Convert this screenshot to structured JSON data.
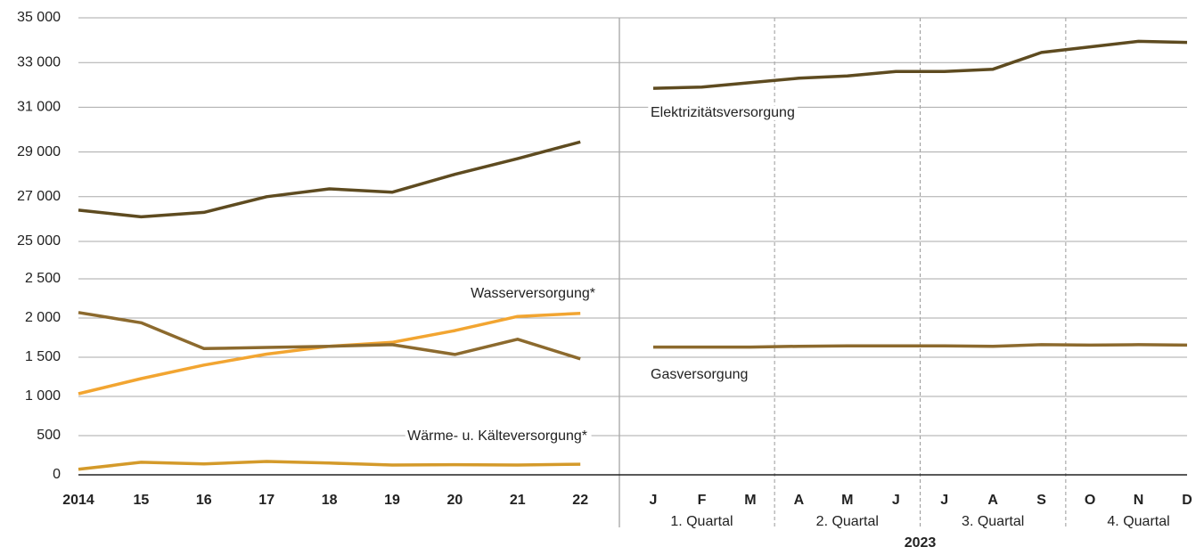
{
  "chart_data": [
    {
      "type": "line",
      "ylim": [
        25000,
        35000
      ],
      "yticks": [
        {
          "value": 25000,
          "label": "25 000"
        },
        {
          "value": 27000,
          "label": "27 000"
        },
        {
          "value": 29000,
          "label": "29 000"
        },
        {
          "value": 31000,
          "label": "31 000"
        },
        {
          "value": 33000,
          "label": "33 000"
        },
        {
          "value": 35000,
          "label": "35 000"
        }
      ],
      "series": [
        {
          "name": "Elektrizitätsversorgung",
          "color": "#5e4b20",
          "values": [
            26400,
            26100,
            26300,
            27000,
            27350,
            27200,
            28000,
            28700,
            29450,
            31850,
            31900,
            32100,
            32300,
            32400,
            32600,
            32600,
            32700,
            33450,
            33700,
            33950,
            33900
          ]
        }
      ]
    },
    {
      "type": "line",
      "ylim": [
        0,
        2500
      ],
      "yticks": [
        0,
        500,
        {
          "value": 1000,
          "label": "1 000"
        },
        {
          "value": 1500,
          "label": "1 500"
        },
        {
          "value": 2000,
          "label": "2 000"
        },
        {
          "value": 2500,
          "label": "2 500"
        }
      ],
      "categories": [
        "2014",
        "15",
        "16",
        "17",
        "18",
        "19",
        "20",
        "21",
        "22",
        "J",
        "F",
        "M",
        "A",
        "M",
        "J",
        "J",
        "A",
        "S",
        "O",
        "N",
        "D"
      ],
      "period_label": "2023",
      "quarters": [
        "1. Quartal",
        "2. Quartal",
        "3. Quartal",
        "4. Quartal"
      ],
      "series": [
        {
          "name": "Wasserversorgung*",
          "color": "#f2a531",
          "values": [
            1034,
            1227,
            1400,
            1540,
            1640,
            1690,
            1840,
            2020,
            2060,
            null,
            null,
            null,
            null,
            null,
            null,
            null,
            null,
            null,
            null,
            null,
            null
          ]
        },
        {
          "name": "Gasversorgung",
          "color": "#8c6a2e",
          "values": [
            2070,
            1940,
            1610,
            1625,
            1640,
            1660,
            1535,
            1730,
            1480,
            1630,
            1630,
            1630,
            1640,
            1645,
            1645,
            1645,
            1640,
            1660,
            1655,
            1660,
            1655
          ]
        },
        {
          "name": "Wärme- u. Kälteversorgung*",
          "color": "#d49a2a",
          "values": [
            70,
            160,
            140,
            170,
            150,
            125,
            130,
            125,
            135,
            null,
            null,
            null,
            null,
            null,
            null,
            null,
            null,
            null,
            null,
            null,
            null
          ]
        }
      ]
    }
  ]
}
